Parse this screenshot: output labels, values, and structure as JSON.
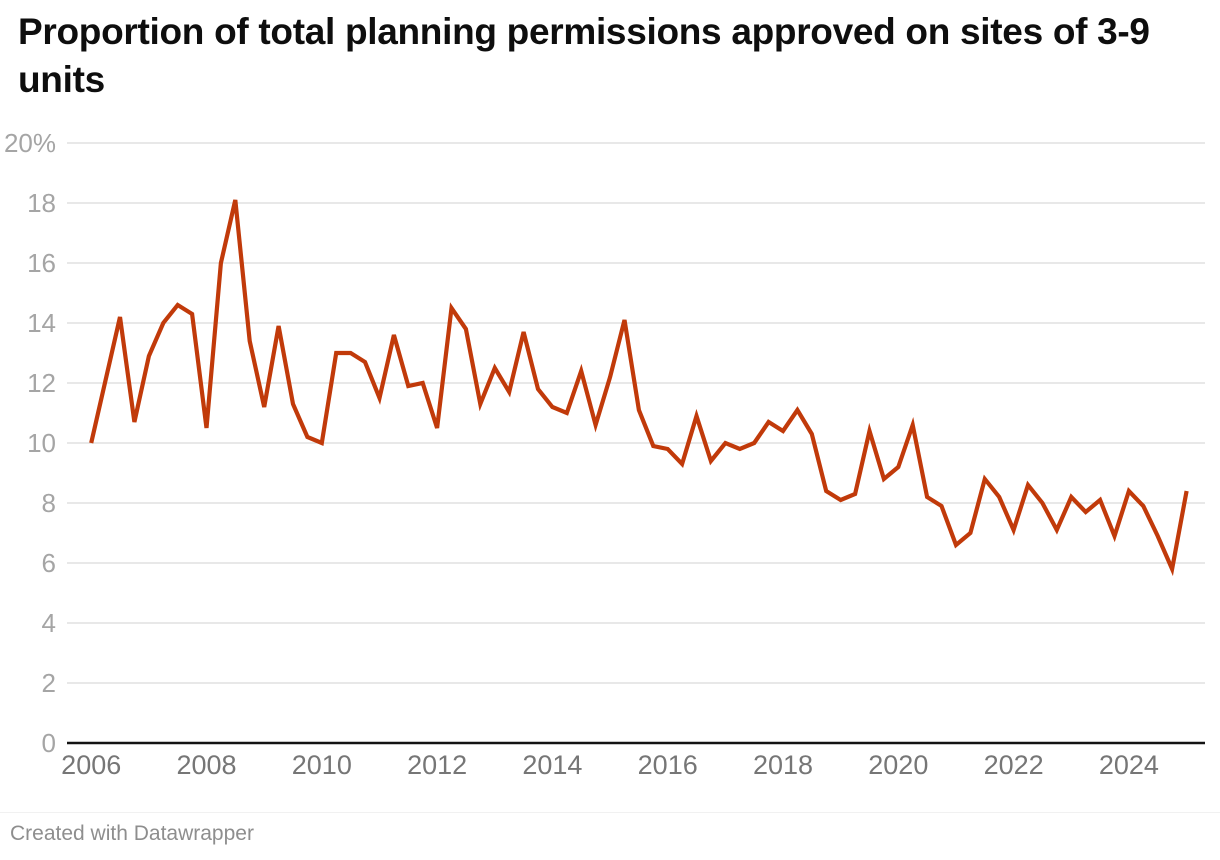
{
  "page": {
    "title": "Proportion of total planning permissions approved on sites of 3-9 units",
    "footer": "Created with Datawrapper"
  },
  "colors": {
    "line": "#c13a0a",
    "title": "#0e0e0e",
    "grid": "#dbdbdb",
    "zero_axis": "#131313",
    "y_tick": "#a5a5a5",
    "x_tick": "#767676",
    "footer": "#8e8e8e"
  },
  "chart_data": {
    "type": "line",
    "title": "Proportion of total planning permissions approved on sites of 3-9 units",
    "unit": "%",
    "xlabel": "",
    "ylabel": "",
    "legend": "none",
    "grid": true,
    "x_axis": {
      "tick_years": [
        2006,
        2008,
        2010,
        2012,
        2014,
        2016,
        2018,
        2020,
        2022,
        2024
      ],
      "range": [
        2005.58,
        2025.32
      ]
    },
    "y_axis": {
      "ticks": [
        0,
        2,
        4,
        6,
        8,
        10,
        12,
        14,
        16,
        18,
        20
      ],
      "top_tick_label": "20%",
      "range": [
        0,
        20
      ]
    },
    "series": [
      {
        "name": "Proportion of total planning permissions approved on sites of 3-9 units",
        "start": "2006-Q1",
        "frequency": "quarterly",
        "values": [
          10.0,
          12.1,
          14.2,
          10.7,
          12.9,
          14.0,
          14.6,
          14.3,
          10.5,
          16.0,
          18.1,
          13.4,
          11.2,
          13.9,
          11.3,
          10.2,
          10.0,
          13.0,
          13.0,
          12.7,
          11.5,
          13.6,
          11.9,
          12.0,
          10.5,
          14.5,
          13.8,
          11.3,
          12.5,
          11.7,
          13.7,
          11.8,
          11.2,
          11.0,
          12.4,
          10.6,
          12.2,
          14.1,
          11.1,
          9.9,
          9.8,
          9.3,
          10.9,
          9.4,
          10.0,
          9.8,
          10.0,
          10.7,
          10.4,
          11.1,
          10.3,
          8.4,
          8.1,
          8.3,
          10.4,
          8.8,
          9.2,
          10.6,
          8.2,
          7.9,
          6.6,
          7.0,
          8.8,
          8.2,
          7.1,
          8.6,
          8.0,
          7.1,
          8.2,
          7.7,
          8.1,
          6.9,
          8.4,
          7.9,
          6.9,
          5.8,
          8.4
        ]
      }
    ]
  }
}
